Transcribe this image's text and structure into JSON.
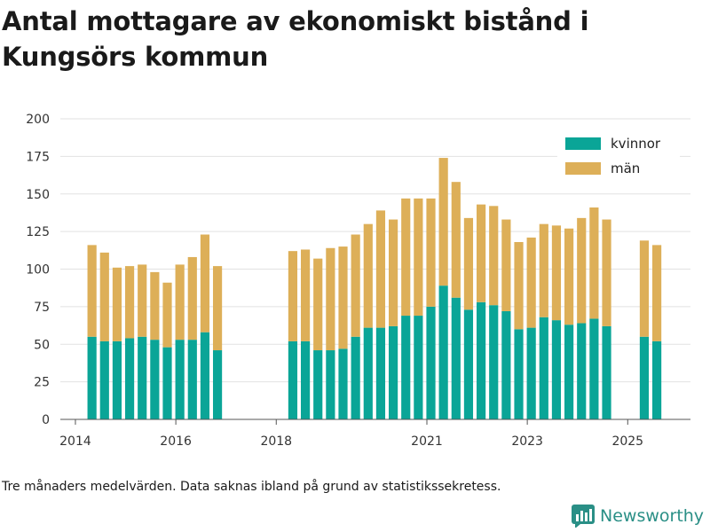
{
  "chart_data": {
    "type": "bar",
    "stacked": true,
    "title": "Antal mottagare av ekonomiskt bistånd i Kungsörs kommun",
    "xlabel": "",
    "ylabel": "",
    "ylim": [
      0,
      200
    ],
    "y_ticks": [
      "0",
      "25",
      "50",
      "75",
      "100",
      "125",
      "150",
      "175",
      "200"
    ],
    "x_ticks": [
      {
        "label": "2014",
        "x": 2014.0
      },
      {
        "label": "2016",
        "x": 2016.0
      },
      {
        "label": "2018",
        "x": 2018.0
      },
      {
        "label": "2021",
        "x": 2021.0
      },
      {
        "label": "2023",
        "x": 2023.0
      },
      {
        "label": "2025",
        "x": 2025.0
      }
    ],
    "x_range": [
      2013.7,
      2026.25
    ],
    "bar_width_years": 0.18,
    "x": [
      2014.33,
      2014.58,
      2014.83,
      2015.08,
      2015.33,
      2015.58,
      2015.83,
      2016.08,
      2016.33,
      2016.58,
      2016.83,
      2018.33,
      2018.58,
      2018.83,
      2019.08,
      2019.33,
      2019.58,
      2019.83,
      2020.08,
      2020.33,
      2020.58,
      2020.83,
      2021.08,
      2021.33,
      2021.58,
      2021.83,
      2022.08,
      2022.33,
      2022.58,
      2022.83,
      2023.08,
      2023.33,
      2023.58,
      2023.83,
      2024.08,
      2024.33,
      2024.58,
      2025.33,
      2025.58
    ],
    "series": [
      {
        "name": "kvinnor",
        "color": "#0aa597",
        "values": [
          55,
          52,
          52,
          54,
          55,
          53,
          48,
          53,
          53,
          58,
          46,
          52,
          52,
          46,
          46,
          47,
          55,
          61,
          61,
          62,
          69,
          69,
          75,
          89,
          81,
          73,
          78,
          76,
          72,
          60,
          61,
          68,
          66,
          63,
          64,
          67,
          62,
          55,
          52
        ]
      },
      {
        "name": "män",
        "color": "#ddaf58",
        "values": [
          61,
          59,
          49,
          48,
          48,
          45,
          43,
          50,
          55,
          65,
          56,
          60,
          61,
          61,
          68,
          68,
          68,
          69,
          78,
          71,
          78,
          78,
          72,
          85,
          77,
          61,
          65,
          66,
          61,
          58,
          60,
          62,
          63,
          64,
          70,
          74,
          71,
          64,
          64
        ]
      }
    ],
    "legend_position": "top-right"
  },
  "footer": {
    "note": "Tre månaders medelvärden. Data saknas ibland på grund av statistikssekretess.",
    "brand": "Newsworthy"
  }
}
